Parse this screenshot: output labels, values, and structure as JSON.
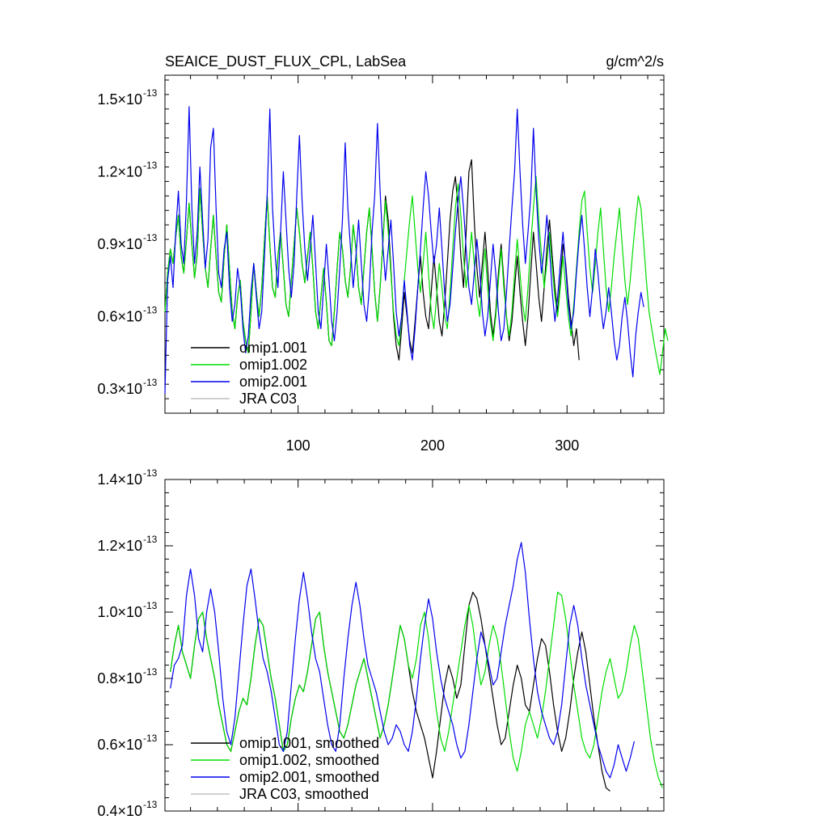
{
  "chart_data": [
    {
      "type": "line",
      "title": "SEAICE_DUST_FLUX_CPL, LabSea",
      "units": "g/cm^2/s",
      "xlim": [
        1,
        372
      ],
      "ylim": [
        0.2,
        1.6
      ],
      "y_multiplier_label": "×10",
      "y_exponent": "-13",
      "xticks": [
        {
          "value": 100,
          "label": "100"
        },
        {
          "value": 200,
          "label": "200"
        },
        {
          "value": 300,
          "label": "300"
        }
      ],
      "yticks": [
        {
          "value": 0.3,
          "label": "0.3"
        },
        {
          "value": 0.6,
          "label": "0.6"
        },
        {
          "value": 0.9,
          "label": "0.9"
        },
        {
          "value": 1.2,
          "label": "1.2"
        },
        {
          "value": 1.5,
          "label": "1.5"
        }
      ],
      "legend": "bottom-left",
      "series": [
        {
          "name": "omip1.001",
          "color": "#000000",
          "x_start": 1,
          "x_step": 2,
          "values": [
            0.62,
            0.78,
            0.88,
            0.82,
            0.93,
            1.02,
            0.85,
            0.78,
            0.92,
            1.07,
            0.9,
            0.76,
            0.86,
            1.13,
            0.95,
            0.8,
            0.72,
            0.88,
            1.02,
            0.85,
            0.7,
            0.66,
            0.85,
            0.98,
            0.8,
            0.62,
            0.55,
            0.68,
            0.75,
            0.58,
            0.5,
            0.45,
            0.62,
            0.82,
            0.7,
            0.6,
            0.72,
            0.92,
            1.1,
            0.9,
            0.72,
            0.68,
            0.85,
            0.95,
            0.8,
            0.65,
            0.6,
            0.75,
            0.9,
            1.05,
            0.95,
            0.82,
            0.74,
            0.85,
            0.95,
            0.8,
            0.62,
            0.55,
            0.68,
            0.8,
            0.66,
            0.5,
            0.48,
            0.62,
            0.8,
            0.95,
            0.88,
            0.75,
            0.68,
            0.8,
            0.98,
            0.88,
            0.72,
            0.65,
            0.8,
            0.95,
            1.05,
            0.88,
            0.7,
            0.58,
            0.72,
            0.9,
            1.1,
            1.0,
            0.8,
            0.6,
            0.48,
            0.42,
            0.55,
            0.7,
            0.6,
            0.5,
            0.45,
            0.58,
            0.72,
            0.85,
            0.7,
            0.6,
            0.55,
            0.7,
            0.85,
            0.72,
            0.58,
            0.52,
            0.65,
            0.82,
            1.0,
            1.12,
            1.18,
            1.05,
            0.85,
            0.72,
            0.95,
            1.2,
            1.25,
            1.0,
            0.8,
            0.68,
            0.82,
            0.95,
            0.8,
            0.62,
            0.52,
            0.62,
            0.78,
            0.9,
            0.75,
            0.6,
            0.5,
            0.58,
            0.72,
            0.85,
            0.7,
            0.58,
            0.48,
            0.6,
            0.78,
            0.95,
            0.82,
            0.68,
            0.58,
            0.72,
            0.88,
            1.0,
            0.85,
            0.72,
            0.62,
            0.75,
            0.9,
            0.82,
            0.68,
            0.58,
            0.48,
            0.55,
            0.42
          ]
        },
        {
          "name": "omip1.002",
          "color": "#00dd00",
          "x_start": 1,
          "x_step": 2,
          "values": [
            0.62,
            0.78,
            0.88,
            0.82,
            0.93,
            1.02,
            0.85,
            0.78,
            0.92,
            1.07,
            0.9,
            0.76,
            0.86,
            1.13,
            0.95,
            0.8,
            0.72,
            0.88,
            1.02,
            0.85,
            0.7,
            0.66,
            0.85,
            0.98,
            0.8,
            0.62,
            0.55,
            0.68,
            0.75,
            0.58,
            0.5,
            0.45,
            0.62,
            0.82,
            0.7,
            0.6,
            0.72,
            0.92,
            1.1,
            0.9,
            0.72,
            0.68,
            0.85,
            0.95,
            0.8,
            0.65,
            0.6,
            0.75,
            0.9,
            1.05,
            0.95,
            0.82,
            0.74,
            0.85,
            0.95,
            0.8,
            0.62,
            0.55,
            0.68,
            0.8,
            0.66,
            0.5,
            0.48,
            0.62,
            0.8,
            0.95,
            0.88,
            0.75,
            0.68,
            0.8,
            0.98,
            0.88,
            0.72,
            0.65,
            0.8,
            0.95,
            1.05,
            0.88,
            0.7,
            0.58,
            0.72,
            0.9,
            1.08,
            0.95,
            0.78,
            0.62,
            0.52,
            0.48,
            0.6,
            0.75,
            0.88,
            1.0,
            1.1,
            0.95,
            0.8,
            0.7,
            0.82,
            0.95,
            0.78,
            0.62,
            0.55,
            0.68,
            0.82,
            0.72,
            0.6,
            0.55,
            0.7,
            0.88,
            1.05,
            1.15,
            1.02,
            0.85,
            0.72,
            0.82,
            0.95,
            0.82,
            0.68,
            0.6,
            0.75,
            0.88,
            0.72,
            0.58,
            0.5,
            0.6,
            0.75,
            0.88,
            0.72,
            0.6,
            0.52,
            0.62,
            0.78,
            0.92,
            0.78,
            0.65,
            0.58,
            0.72,
            0.9,
            1.05,
            1.18,
            1.0,
            0.85,
            0.72,
            0.82,
            0.95,
            0.8,
            0.68,
            0.6,
            0.72,
            0.85,
            0.72,
            0.6,
            0.52,
            0.65,
            0.8,
            0.95,
            1.08,
            1.12,
            0.95,
            0.8,
            0.7,
            0.82,
            0.95,
            1.05,
            0.88,
            0.72,
            0.62,
            0.72,
            0.85,
            0.95,
            1.05,
            0.9,
            0.75,
            0.65,
            0.75,
            0.88,
            1.0,
            1.1,
            1.05,
            0.9,
            0.75,
            0.62,
            0.55,
            0.48,
            0.42,
            0.36,
            0.45,
            0.55,
            0.5
          ]
        },
        {
          "name": "omip2.001",
          "color": "#0000ee",
          "x_start": 1,
          "x_step": 2,
          "values": [
            0.28,
            0.75,
            0.85,
            0.72,
            0.95,
            1.12,
            0.9,
            0.82,
            1.08,
            1.47,
            1.05,
            0.82,
            0.95,
            1.22,
            1.0,
            0.8,
            0.92,
            1.3,
            1.38,
            1.05,
            0.78,
            0.72,
            0.88,
            0.95,
            0.72,
            0.58,
            0.65,
            0.8,
            0.72,
            0.55,
            0.45,
            0.52,
            0.7,
            0.82,
            0.68,
            0.55,
            0.62,
            0.85,
            1.1,
            1.46,
            1.05,
            0.85,
            0.72,
            0.95,
            1.2,
            1.0,
            0.8,
            0.68,
            0.82,
            1.1,
            1.35,
            1.08,
            0.88,
            0.75,
            0.88,
            1.02,
            0.82,
            0.62,
            0.55,
            0.72,
            0.9,
            0.75,
            0.58,
            0.5,
            0.62,
            0.8,
            1.0,
            1.32,
            1.05,
            0.88,
            0.72,
            0.85,
            1.0,
            0.82,
            0.65,
            0.58,
            0.72,
            0.95,
            1.1,
            1.4,
            1.12,
            0.9,
            0.75,
            0.88,
            1.0,
            0.82,
            0.62,
            0.52,
            0.6,
            0.75,
            0.62,
            0.48,
            0.42,
            0.55,
            0.72,
            0.88,
            1.05,
            1.2,
            1.1,
            0.95,
            0.82,
            0.9,
            1.05,
            0.88,
            0.7,
            0.58,
            0.65,
            0.8,
            0.95,
            1.08,
            1.18,
            1.05,
            0.88,
            0.72,
            0.65,
            0.78,
            0.92,
            0.8,
            0.62,
            0.52,
            0.6,
            0.75,
            0.9,
            0.78,
            0.62,
            0.5,
            0.55,
            0.7,
            0.88,
            1.05,
            1.2,
            1.46,
            1.2,
            0.98,
            0.82,
            0.95,
            1.1,
            1.38,
            1.12,
            0.92,
            0.78,
            0.88,
            1.02,
            0.88,
            0.7,
            0.58,
            0.68,
            0.82,
            0.95,
            0.8,
            0.65,
            0.55,
            0.62,
            0.78,
            0.92,
            1.02,
            0.88,
            0.72,
            0.6,
            0.72,
            0.88,
            0.78,
            0.65,
            0.55,
            0.62,
            0.72,
            0.62,
            0.5,
            0.42,
            0.48,
            0.6,
            0.68,
            0.58,
            0.45,
            0.35,
            0.52,
            0.62,
            0.7,
            0.64
          ]
        },
        {
          "name": "JRA C03",
          "color": "#c0c0c0",
          "x_start": 1,
          "x_step": 1,
          "values": []
        }
      ]
    },
    {
      "type": "line",
      "title": "",
      "xlim": [
        1,
        372
      ],
      "ylim": [
        0.4,
        1.4
      ],
      "y_multiplier_label": "×10",
      "y_exponent": "-13",
      "xticks": [
        {
          "value": 100,
          "label": ""
        },
        {
          "value": 200,
          "label": ""
        },
        {
          "value": 300,
          "label": ""
        }
      ],
      "yticks": [
        {
          "value": 0.4,
          "label": "0.4"
        },
        {
          "value": 0.6,
          "label": "0.6"
        },
        {
          "value": 0.8,
          "label": "0.8"
        },
        {
          "value": 1.0,
          "label": "1.0"
        },
        {
          "value": 1.2,
          "label": "1.2"
        },
        {
          "value": 1.4,
          "label": "1.4"
        }
      ],
      "legend": "bottom-left",
      "series": [
        {
          "name": "omip1.001, smoothed",
          "color": "#000000",
          "x_start": 5,
          "x_step": 3,
          "values": [
            0.82,
            0.9,
            0.96,
            0.88,
            0.84,
            0.8,
            0.9,
            0.98,
            1.0,
            0.92,
            0.86,
            0.8,
            0.72,
            0.66,
            0.6,
            0.58,
            0.64,
            0.7,
            0.74,
            0.72,
            0.8,
            0.9,
            0.98,
            0.96,
            0.88,
            0.8,
            0.74,
            0.66,
            0.58,
            0.6,
            0.68,
            0.74,
            0.78,
            0.76,
            0.82,
            0.9,
            0.98,
            1.0,
            0.9,
            0.82,
            0.76,
            0.7,
            0.64,
            0.62,
            0.66,
            0.72,
            0.78,
            0.82,
            0.86,
            0.8,
            0.74,
            0.68,
            0.62,
            0.66,
            0.72,
            0.8,
            0.88,
            0.96,
            0.92,
            0.84,
            0.76,
            0.7,
            0.66,
            0.62,
            0.56,
            0.5,
            0.58,
            0.68,
            0.78,
            0.84,
            0.8,
            0.74,
            0.78,
            0.9,
            1.02,
            1.06,
            1.04,
            0.98,
            0.9,
            0.82,
            0.74,
            0.66,
            0.6,
            0.62,
            0.7,
            0.78,
            0.84,
            0.8,
            0.72,
            0.7,
            0.78,
            0.86,
            0.92,
            0.9,
            0.82,
            0.72,
            0.64,
            0.58,
            0.62,
            0.7,
            0.8,
            0.88,
            0.94,
            0.88,
            0.78,
            0.68,
            0.6,
            0.52,
            0.47,
            0.46
          ]
        },
        {
          "name": "omip1.002, smoothed",
          "color": "#00dd00",
          "x_start": 5,
          "x_step": 3,
          "values": [
            0.82,
            0.9,
            0.96,
            0.88,
            0.84,
            0.8,
            0.9,
            0.98,
            1.0,
            0.92,
            0.86,
            0.8,
            0.72,
            0.66,
            0.6,
            0.58,
            0.64,
            0.7,
            0.74,
            0.72,
            0.8,
            0.9,
            0.98,
            0.96,
            0.88,
            0.8,
            0.74,
            0.66,
            0.58,
            0.6,
            0.68,
            0.74,
            0.78,
            0.76,
            0.82,
            0.9,
            0.98,
            1.0,
            0.9,
            0.82,
            0.76,
            0.7,
            0.64,
            0.62,
            0.66,
            0.72,
            0.78,
            0.82,
            0.86,
            0.8,
            0.74,
            0.68,
            0.62,
            0.66,
            0.72,
            0.8,
            0.88,
            0.96,
            0.92,
            0.84,
            0.8,
            0.86,
            0.96,
            1.0,
            0.92,
            0.8,
            0.7,
            0.62,
            0.58,
            0.64,
            0.72,
            0.8,
            0.88,
            0.96,
            1.02,
            0.96,
            0.86,
            0.78,
            0.82,
            0.9,
            0.96,
            0.92,
            0.84,
            0.74,
            0.64,
            0.56,
            0.52,
            0.58,
            0.66,
            0.7,
            0.66,
            0.62,
            0.68,
            0.76,
            0.86,
            0.96,
            1.06,
            1.05,
            0.98,
            0.88,
            0.78,
            0.7,
            0.62,
            0.58,
            0.56,
            0.6,
            0.68,
            0.76,
            0.82,
            0.86,
            0.8,
            0.74,
            0.76,
            0.82,
            0.9,
            0.96,
            0.92,
            0.82,
            0.72,
            0.62,
            0.55,
            0.5,
            0.47
          ]
        },
        {
          "name": "omip2.001, smoothed",
          "color": "#0000ee",
          "x_start": 5,
          "x_step": 3,
          "values": [
            0.77,
            0.84,
            0.86,
            0.9,
            1.05,
            1.13,
            1.05,
            0.92,
            0.88,
            1.0,
            1.07,
            1.0,
            0.88,
            0.74,
            0.64,
            0.6,
            0.68,
            0.82,
            0.96,
            1.08,
            1.13,
            1.04,
            0.94,
            0.86,
            0.82,
            0.76,
            0.68,
            0.6,
            0.58,
            0.64,
            0.78,
            0.92,
            1.04,
            1.12,
            1.04,
            0.94,
            0.86,
            0.82,
            0.74,
            0.66,
            0.6,
            0.58,
            0.66,
            0.8,
            0.92,
            1.02,
            1.09,
            1.02,
            0.92,
            0.84,
            0.8,
            0.76,
            0.7,
            0.64,
            0.6,
            0.62,
            0.66,
            0.64,
            0.6,
            0.58,
            0.64,
            0.74,
            0.86,
            0.96,
            1.04,
            0.98,
            0.88,
            0.8,
            0.74,
            0.7,
            0.66,
            0.6,
            0.56,
            0.58,
            0.66,
            0.76,
            0.86,
            0.94,
            0.9,
            0.84,
            0.78,
            0.8,
            0.88,
            0.96,
            1.02,
            1.08,
            1.16,
            1.21,
            1.12,
            0.98,
            0.86,
            0.76,
            0.7,
            0.66,
            0.62,
            0.6,
            0.64,
            0.72,
            0.84,
            0.96,
            1.02,
            0.96,
            0.86,
            0.78,
            0.72,
            0.66,
            0.6,
            0.56,
            0.52,
            0.5,
            0.54,
            0.6,
            0.56,
            0.52,
            0.56,
            0.61
          ]
        },
        {
          "name": "JRA C03, smoothed",
          "color": "#c0c0c0",
          "x_start": 1,
          "x_step": 1,
          "values": []
        }
      ]
    }
  ]
}
